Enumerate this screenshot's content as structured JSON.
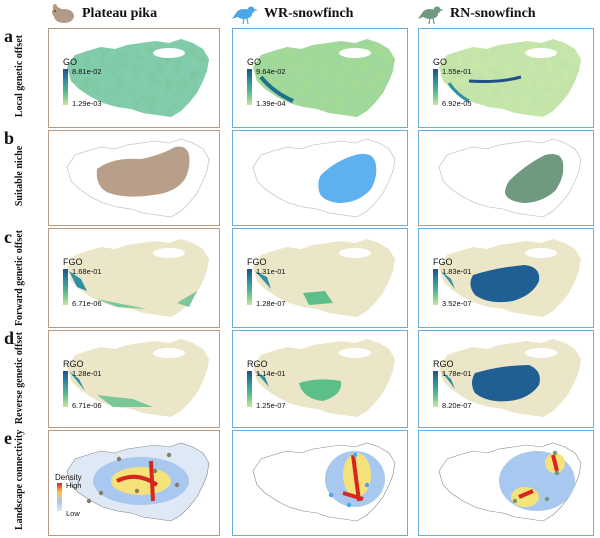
{
  "species": [
    {
      "name": "Plateau pika",
      "icon": "pika-silhouette-icon",
      "color": "#b39a84"
    },
    {
      "name": "WR-snowfinch",
      "icon": "bird-silhouette-icon",
      "color": "#4aa6e6"
    },
    {
      "name": "RN-snowfinch",
      "icon": "bird-silhouette-icon",
      "color": "#6f9a7f"
    }
  ],
  "rows": [
    {
      "letter": "a",
      "title": "Local genetic offset"
    },
    {
      "letter": "b",
      "title": "Suitable niche"
    },
    {
      "letter": "c",
      "title": "Forward genetic offset"
    },
    {
      "letter": "d",
      "title": "Reverse genetic offset"
    },
    {
      "letter": "e",
      "title": "Landscape connectivity"
    }
  ],
  "legends": {
    "a": [
      {
        "title": "GO",
        "max": "8.81e-02",
        "min": "1.29e-03"
      },
      {
        "title": "GO",
        "max": "9.64e-02",
        "min": "1.39e-04"
      },
      {
        "title": "GO",
        "max": "1.55e-01",
        "min": "6.92e-05"
      }
    ],
    "c": [
      {
        "title": "FGO",
        "max": "1.68e-01",
        "min": "6.71e-06"
      },
      {
        "title": "FGO",
        "max": "1.31e-01",
        "min": "1.28e-07"
      },
      {
        "title": "FGO",
        "max": "1.83e-01",
        "min": "3.52e-07"
      }
    ],
    "d": [
      {
        "title": "RGO",
        "max": "1.28e-01",
        "min": "6.71e-06"
      },
      {
        "title": "RGO",
        "max": "1.14e-01",
        "min": "1.25e-07"
      },
      {
        "title": "RGO",
        "max": "1.78e-01",
        "min": "8.20e-07"
      }
    ],
    "e": {
      "title": "Density",
      "high": "High",
      "low": "Low"
    }
  },
  "colors": {
    "brown_border": "#b89a82",
    "blue_border": "#6aaee0",
    "low_offset": "#c8e89a",
    "mid_offset": "#5cbf8a",
    "high_offset": "#1f4f8c",
    "background_region": "#ece6c8",
    "lake": "#ffffff"
  }
}
